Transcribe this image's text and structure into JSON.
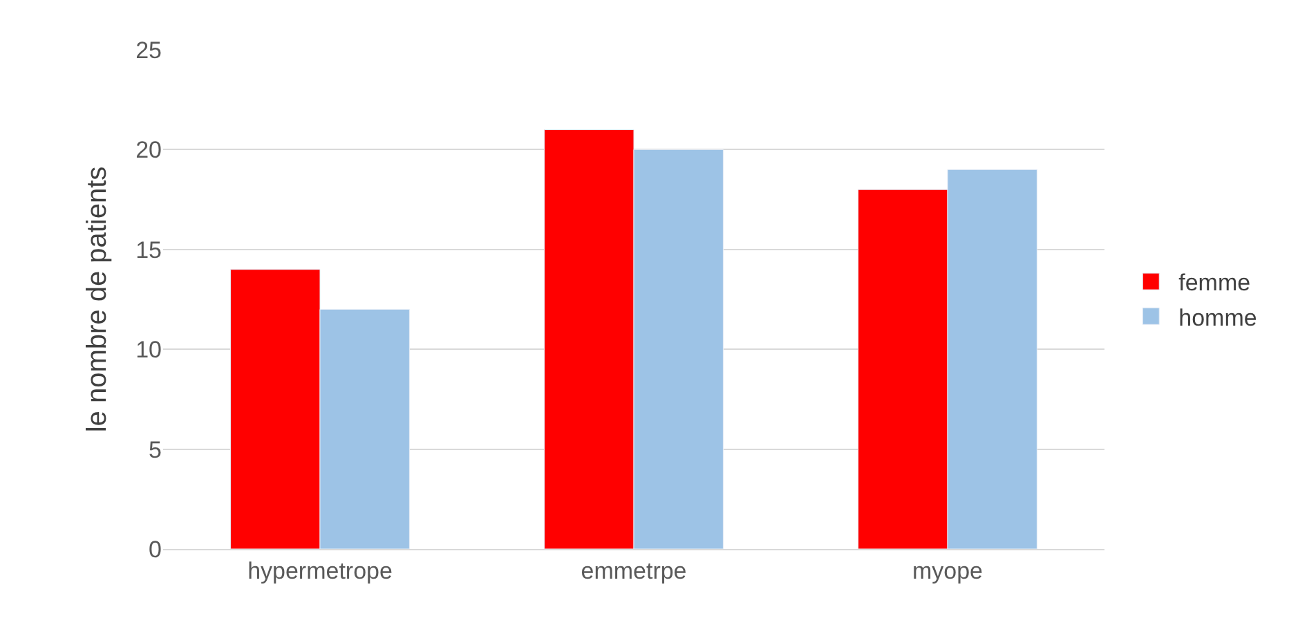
{
  "chart_data": {
    "type": "bar",
    "ylabel": "le nombre de patients",
    "categories": [
      "hypermetrope",
      "emmetrpe",
      "myope"
    ],
    "series": [
      {
        "name": "femme",
        "color": "#ff0000",
        "values": [
          14,
          21,
          18
        ]
      },
      {
        "name": "homme",
        "color": "#9dc3e6",
        "values": [
          12,
          20,
          19
        ]
      }
    ],
    "ylim": [
      0,
      25
    ],
    "yticks": [
      0,
      5,
      10,
      15,
      20,
      25
    ],
    "grid": "y",
    "legend": "right"
  }
}
